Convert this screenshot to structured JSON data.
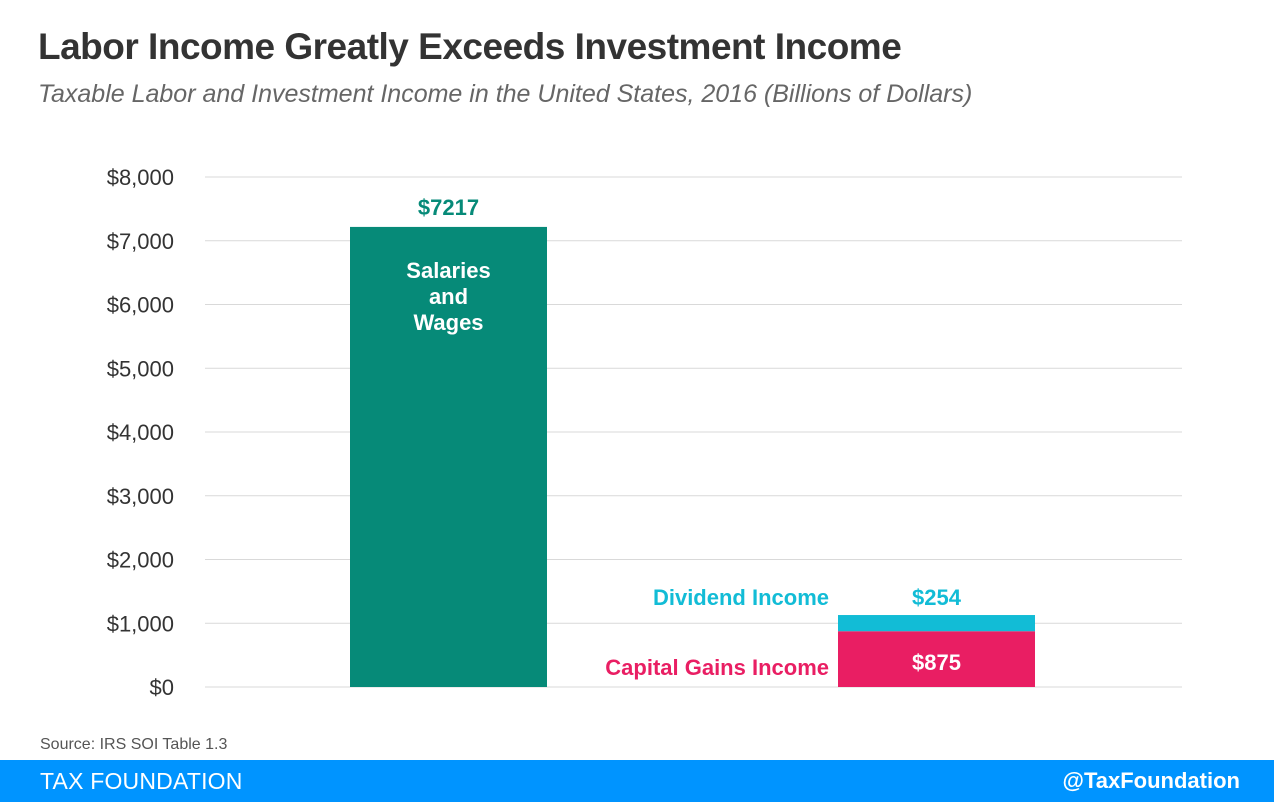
{
  "title": "Labor Income Greatly Exceeds Investment Income",
  "subtitle": "Taxable Labor and Investment Income in the United States, 2016 (Billions of Dollars)",
  "source": "Source: IRS SOI Table 1.3",
  "footer": {
    "brand": "TAX FOUNDATION",
    "handle": "@TaxFoundation"
  },
  "colors": {
    "salaries": "#068a78",
    "dividends": "#12bcd6",
    "capital_gains": "#e91e63",
    "grid": "#d9d9d9",
    "footer": "#0094ff"
  },
  "chart_data": {
    "type": "bar",
    "stacked": true,
    "ylim": [
      0,
      8000
    ],
    "yticks": [
      "$0",
      "$1,000",
      "$2,000",
      "$3,000",
      "$4,000",
      "$5,000",
      "$6,000",
      "$7,000",
      "$8,000"
    ],
    "ytick_values": [
      0,
      1000,
      2000,
      3000,
      4000,
      5000,
      6000,
      7000,
      8000
    ],
    "grid": true,
    "bars": [
      {
        "segments": [
          {
            "name": "Salaries and Wages",
            "label_lines": [
              "Salaries",
              "and",
              "Wages"
            ],
            "value": 7217,
            "value_label": "$7217"
          }
        ]
      },
      {
        "segments": [
          {
            "name": "Capital Gains Income",
            "value": 875,
            "value_label": "$875"
          },
          {
            "name": "Dividend Income",
            "value": 254,
            "value_label": "$254"
          }
        ]
      }
    ]
  }
}
